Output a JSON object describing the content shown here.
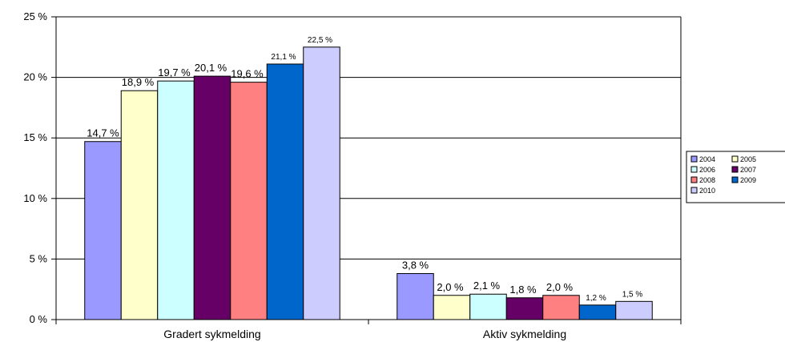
{
  "chart_data": {
    "type": "bar",
    "categories": [
      "Gradert sykmelding",
      "Aktiv sykmelding"
    ],
    "series": [
      {
        "name": "2004",
        "values": [
          14.7,
          3.8
        ],
        "labels": [
          "14,7 %",
          "3,8 %"
        ],
        "color": "#9999FF"
      },
      {
        "name": "2005",
        "values": [
          18.9,
          2.0
        ],
        "labels": [
          "18,9 %",
          "2,0 %"
        ],
        "color": "#FFFFCC"
      },
      {
        "name": "2006",
        "values": [
          19.7,
          2.1
        ],
        "labels": [
          "19,7 %",
          "2,1 %"
        ],
        "color": "#CCFFFF"
      },
      {
        "name": "2007",
        "values": [
          20.1,
          1.8
        ],
        "labels": [
          "20,1 %",
          "1,8 %"
        ],
        "color": "#660066"
      },
      {
        "name": "2008",
        "values": [
          19.6,
          2.0
        ],
        "labels": [
          "19,6 %",
          "2,0 %"
        ],
        "color": "#FF8080"
      },
      {
        "name": "2009",
        "values": [
          21.1,
          1.2
        ],
        "labels": [
          "21,1 %",
          "1,2 %"
        ],
        "color": "#0066CC"
      },
      {
        "name": "2010",
        "values": [
          22.5,
          1.5
        ],
        "labels": [
          "22,5 %",
          "1,5 %"
        ],
        "color": "#CCCCFF"
      }
    ],
    "y_ticks": [
      {
        "value": 0,
        "label": "0 %"
      },
      {
        "value": 5,
        "label": "5 %"
      },
      {
        "value": 10,
        "label": "10 %"
      },
      {
        "value": 15,
        "label": "15 %"
      },
      {
        "value": 20,
        "label": "20 %"
      },
      {
        "value": 25,
        "label": "25 %"
      }
    ],
    "ylim": [
      0,
      25
    ],
    "grid": true,
    "legend_position": "right"
  }
}
